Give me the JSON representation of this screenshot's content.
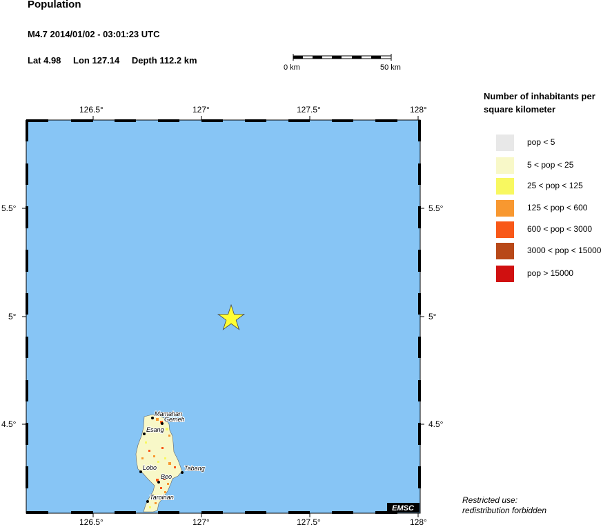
{
  "header": {
    "title": "Population",
    "event": "M4.7  2014/01/02 - 03:01:23 UTC",
    "lat": "Lat  4.98",
    "lon": "Lon 127.14",
    "depth": "Depth 112.2 km"
  },
  "scale_bar": {
    "start_label": "0 km",
    "end_label": "50 km"
  },
  "map": {
    "lon_ticks": [
      "126.5°",
      "127°",
      "127.5°",
      "128°"
    ],
    "lat_ticks": [
      "5.5°",
      "5°",
      "4.5°"
    ],
    "water_color": "#87c5f5",
    "land_color": "#f8f8c8",
    "epicenter": {
      "lat": 4.98,
      "lon": 127.14,
      "color": "#ffff33"
    },
    "places": [
      "Mamahan",
      "Gemeh",
      "Esang",
      "Lobo",
      "Tabang",
      "Beo",
      "Taroinan"
    ],
    "watermark": "EMSC"
  },
  "legend": {
    "title": "Number of inhabitants per square kilometer",
    "items": [
      {
        "label": "pop < 5",
        "color": "#e8e8e8"
      },
      {
        "label": "5 < pop < 25",
        "color": "#f8f8c8"
      },
      {
        "label": "25 < pop < 125",
        "color": "#f8f860"
      },
      {
        "label": "125 < pop < 600",
        "color": "#f89830"
      },
      {
        "label": "600 < pop < 3000",
        "color": "#f85818"
      },
      {
        "label": "3000 < pop < 15000",
        "color": "#b84818"
      },
      {
        "label": "pop > 15000",
        "color": "#d01010"
      }
    ]
  },
  "footer": {
    "line1": "Restricted use:",
    "line2": "redistribution forbidden"
  }
}
